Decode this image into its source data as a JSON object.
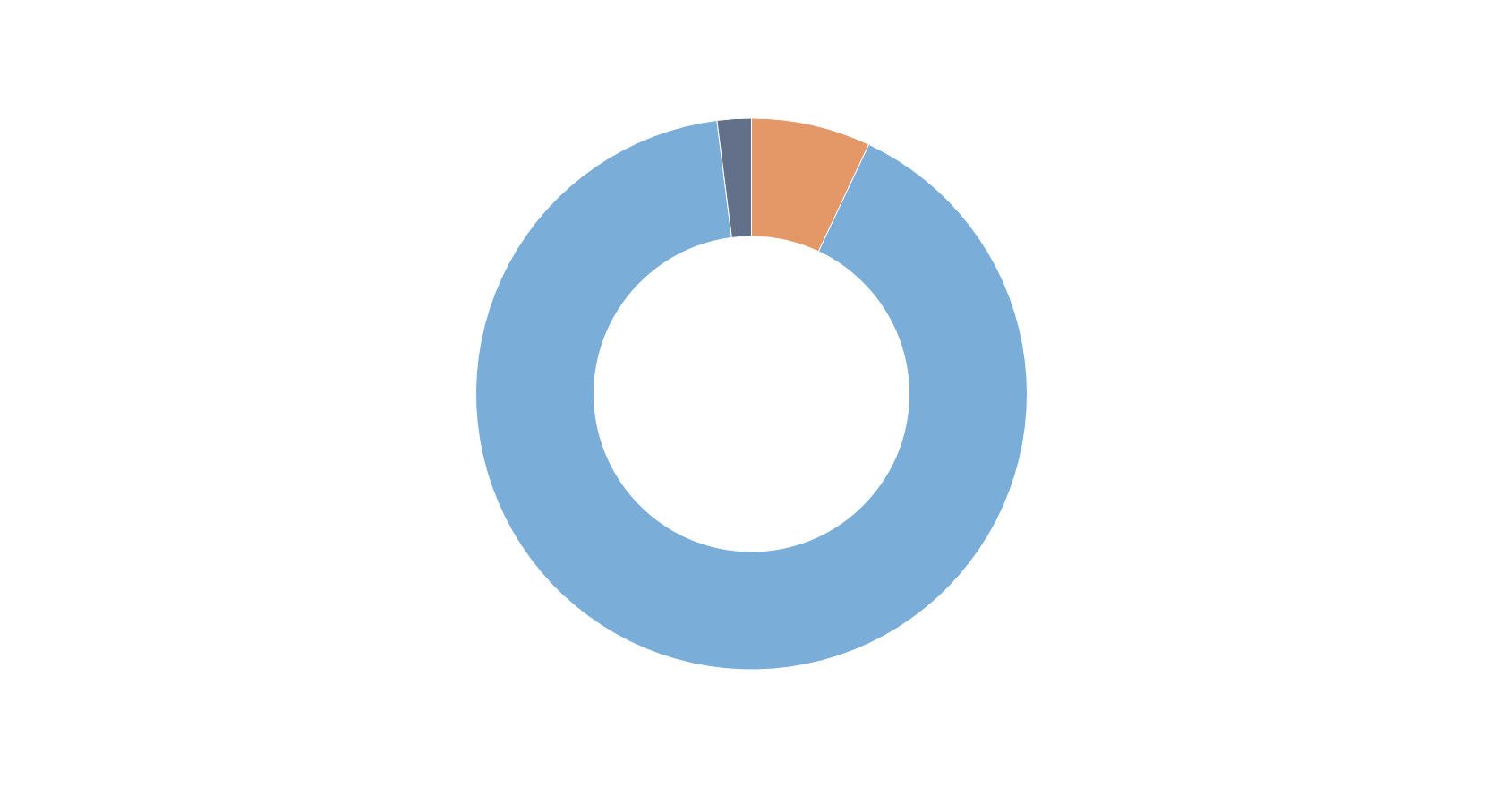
{
  "chart_data": {
    "type": "donut",
    "categories": [
      null,
      null,
      null
    ],
    "values": [
      7,
      91,
      2
    ],
    "colors": [
      "#e49868",
      "#7aaed9",
      "#627089"
    ]
  }
}
